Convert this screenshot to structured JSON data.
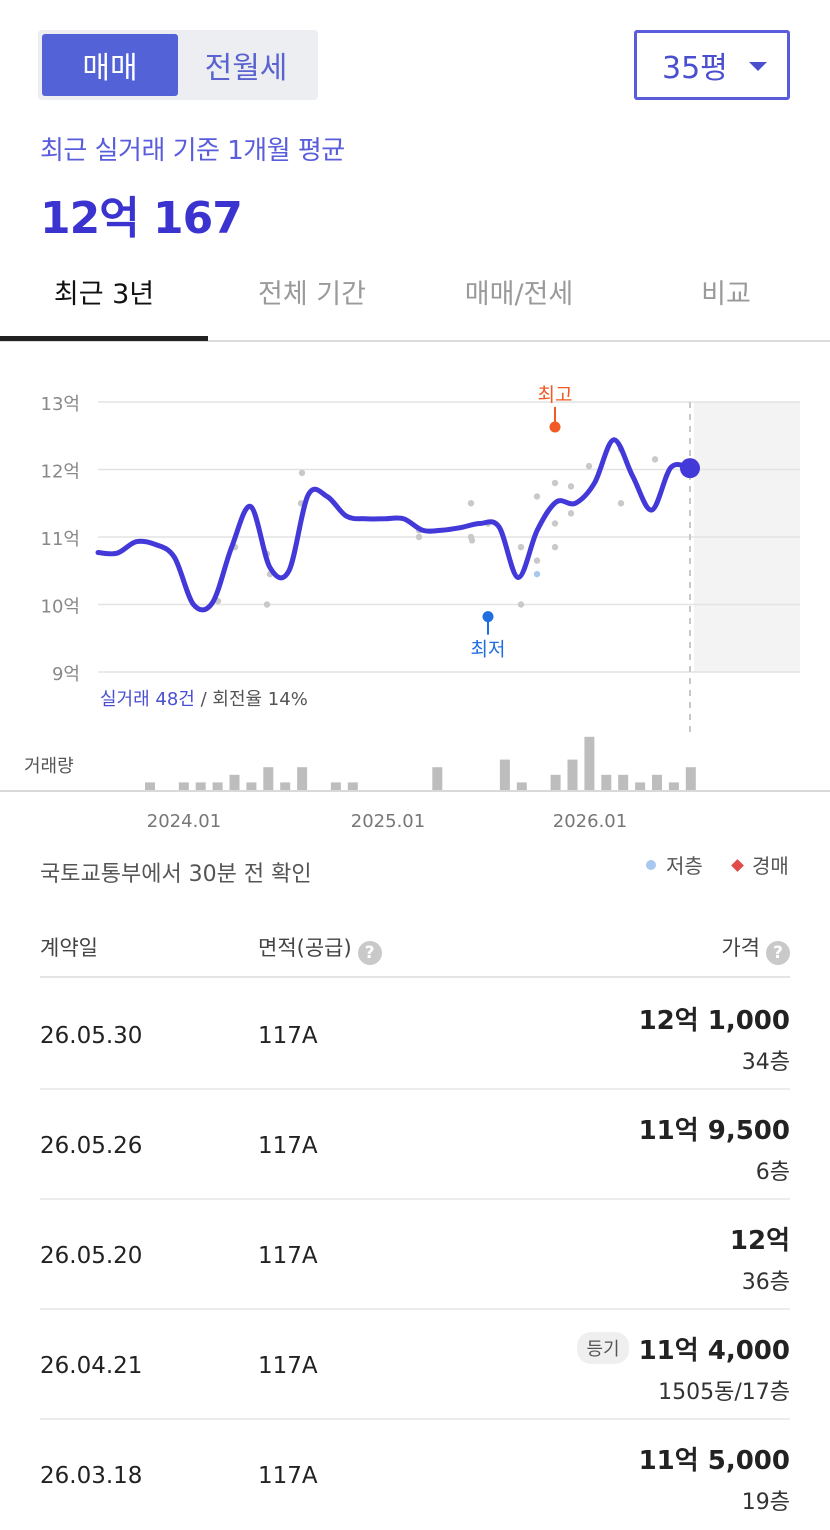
{
  "deal_toggle": {
    "sale": "매매",
    "rent": "전월세"
  },
  "size_select": {
    "value": "35평"
  },
  "average": {
    "label": "최근 실거래 기준 1개월 평균",
    "value": "12억 167"
  },
  "tabs": [
    "최근 3년",
    "전체 기간",
    "매매/전세",
    "비교"
  ],
  "chart": {
    "y_ticks": [
      "13억",
      "12억",
      "11억",
      "10억",
      "9억"
    ],
    "x_ticks": [
      "2024.01",
      "2025.01",
      "2026.01"
    ],
    "high_label": "최고",
    "low_label": "최저",
    "summary_count": "실거래 48건",
    "summary_rest": " / 회전율 14%",
    "volume_label": "거래량",
    "colors": {
      "line": "#4338d8",
      "high": "#f15a24",
      "low": "#1f6fe0",
      "bars": "#bdbdbd",
      "dots": "#c9c9c9"
    }
  },
  "chart_data": {
    "type": "line",
    "unit": "억",
    "ylim": [
      9,
      13
    ],
    "x_start": "2023.06",
    "x_end": "2026.06",
    "trend": [
      10.77,
      10.76,
      10.93,
      10.89,
      10.7,
      10.0,
      10.03,
      10.85,
      11.45,
      10.55,
      10.5,
      11.62,
      11.6,
      11.31,
      11.27,
      11.27,
      11.27,
      11.1,
      11.1,
      11.14,
      11.2,
      11.15,
      10.4,
      11.1,
      11.52,
      11.5,
      11.8,
      12.44,
      11.9,
      11.4,
      12.03,
      12.02
    ],
    "high": 12.63,
    "low": 9.82,
    "current": 12.02,
    "transactions": [
      10.05,
      10.85,
      10.75,
      10.45,
      10.0,
      11.5,
      11.95,
      11.1,
      11.0,
      11.5,
      11.0,
      10.95,
      11.2,
      10.0,
      10.85,
      10.65,
      10.45,
      11.6,
      11.8,
      11.2,
      10.85,
      11.75,
      11.35,
      12.05,
      12.3,
      11.5,
      12.15
    ]
  },
  "volume": [
    1,
    0,
    1,
    1,
    1,
    2,
    1,
    3,
    1,
    3,
    0,
    1,
    1,
    0,
    0,
    0,
    0,
    3,
    0,
    0,
    0,
    4,
    1,
    0,
    2,
    4,
    7,
    2,
    2,
    1,
    2,
    1,
    3
  ],
  "check_text": "국토교통부에서 30분 전 확인",
  "legend": {
    "low_floor": "저층",
    "auction": "경매"
  },
  "table": {
    "headers": {
      "date": "계약일",
      "area": "면적(공급)",
      "price": "가격"
    },
    "rows": [
      {
        "date": "26.05.30",
        "area": "117A",
        "price": "12억 1,000",
        "floor": "34층",
        "badge": ""
      },
      {
        "date": "26.05.26",
        "area": "117A",
        "price": "11억 9,500",
        "floor": "6층",
        "badge": ""
      },
      {
        "date": "26.05.20",
        "area": "117A",
        "price": "12억",
        "floor": "36층",
        "badge": ""
      },
      {
        "date": "26.04.21",
        "area": "117A",
        "price": "11억 4,000",
        "floor": "1505동/17층",
        "badge": "등기"
      },
      {
        "date": "26.03.18",
        "area": "117A",
        "price": "11억 5,000",
        "floor": "19층",
        "badge": ""
      }
    ]
  }
}
